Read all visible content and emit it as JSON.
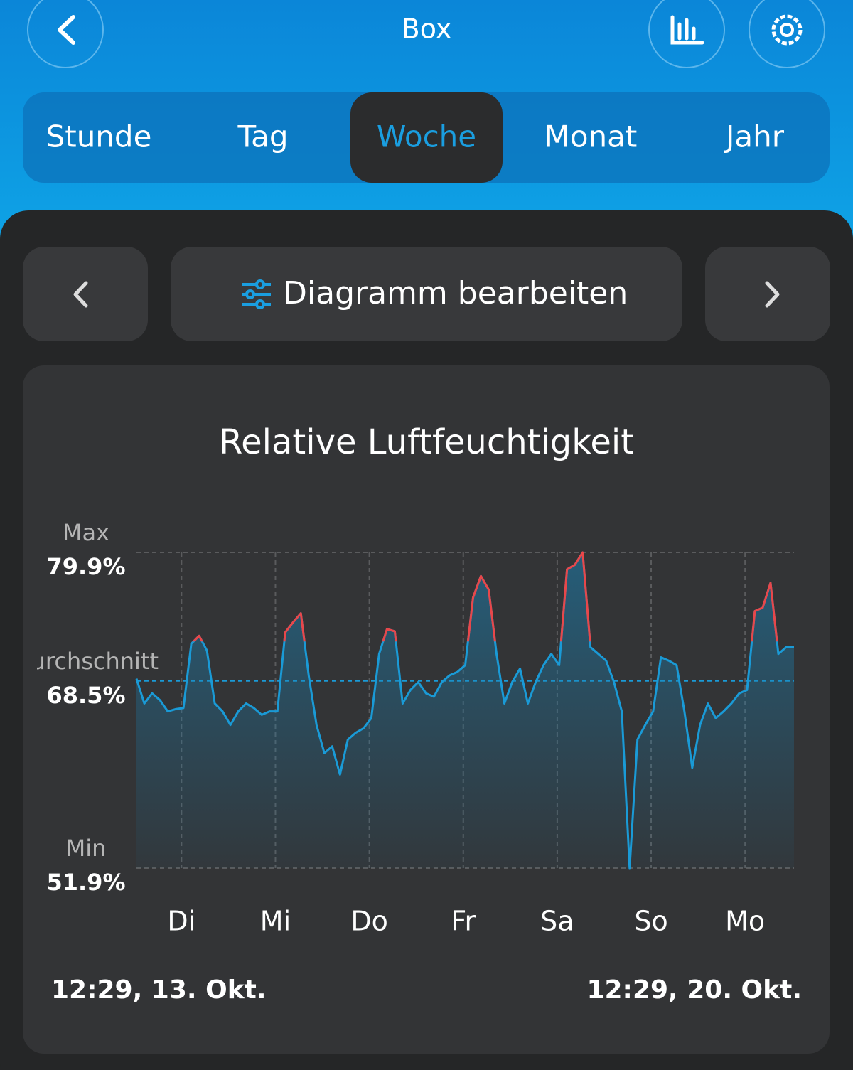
{
  "header": {
    "title": "Box"
  },
  "tabs": [
    "Stunde",
    "Tag",
    "Woche",
    "Monat",
    "Jahr"
  ],
  "toolbar": {
    "edit_button": "Diagramm bearbeiten"
  },
  "chart_data": {
    "type": "line",
    "title": "Relative Luftfeuchtigkeit",
    "x": [
      0,
      2,
      4,
      6,
      8,
      10,
      12,
      14,
      16,
      18,
      20,
      22,
      24,
      26,
      28,
      30,
      32,
      34,
      36,
      38,
      40,
      42,
      44,
      46,
      48,
      50,
      52,
      54,
      56,
      58,
      60,
      62,
      64,
      66,
      68,
      70,
      72,
      74,
      76,
      78,
      80,
      82,
      84,
      86,
      88,
      90,
      92,
      94,
      96,
      98,
      100,
      102,
      104,
      106,
      108,
      110,
      112,
      114,
      116,
      118,
      120,
      122,
      124,
      126,
      128,
      130,
      132,
      134,
      136,
      138,
      140,
      142,
      144,
      146,
      148,
      150,
      152,
      154,
      156,
      158,
      160,
      162,
      164,
      166,
      168
    ],
    "series": [
      {
        "color": "#1a9ad6",
        "values": [
          68.7,
          66.5,
          67.4,
          66.8,
          65.8,
          66,
          66.1,
          71.8,
          72.5,
          71.2,
          66.5,
          65.8,
          64.6,
          65.8,
          66.5,
          66.1,
          65.5,
          65.8,
          65.8,
          72.8,
          73.7,
          74.5,
          69,
          64.6,
          62.1,
          62.7,
          60.2,
          63.3,
          63.9,
          64.3,
          65.2,
          70.9,
          73.1,
          72.9,
          66.5,
          67.7,
          68.4,
          67.4,
          67.1,
          68.4,
          69,
          69.3,
          69.9,
          75.9,
          77.8,
          76.6,
          70.9,
          66.5,
          68.4,
          69.6,
          66.5,
          68.4,
          69.9,
          70.9,
          69.9,
          78.4,
          78.8,
          79.9,
          71.5,
          70.9,
          70.3,
          68.4,
          65.8,
          51.9,
          63.3,
          64.6,
          65.8,
          70.6,
          70.3,
          69.9,
          65.8,
          60.8,
          64.6,
          66.5,
          65.2,
          65.8,
          66.5,
          67.4,
          67.7,
          74.7,
          75,
          77.2,
          70.9,
          71.5,
          71.5
        ]
      }
    ],
    "color_above": {
      "value": 72,
      "color": "#e8474a"
    },
    "xlim": [
      0,
      168
    ],
    "xticks": [
      {
        "value": 11.5,
        "label": "Di"
      },
      {
        "value": 35.5,
        "label": "Mi"
      },
      {
        "value": 59.5,
        "label": "Do"
      },
      {
        "value": 83.5,
        "label": "Fr"
      },
      {
        "value": 107.5,
        "label": "Sa"
      },
      {
        "value": 131.5,
        "label": "So"
      },
      {
        "value": 155.5,
        "label": "Mo"
      }
    ],
    "ylim": [
      51.9,
      79.9
    ],
    "yticks": [
      {
        "value": 79.9,
        "label": "79.9%"
      },
      {
        "value": 68.5,
        "label": "68.5%"
      },
      {
        "value": 51.9,
        "label": "51.9%"
      }
    ],
    "ytick_names": [
      "Max",
      "Durchschnitt",
      "Min"
    ],
    "start_label": "12:29,  13. Okt.",
    "end_label": "12:29,  20. Okt."
  }
}
